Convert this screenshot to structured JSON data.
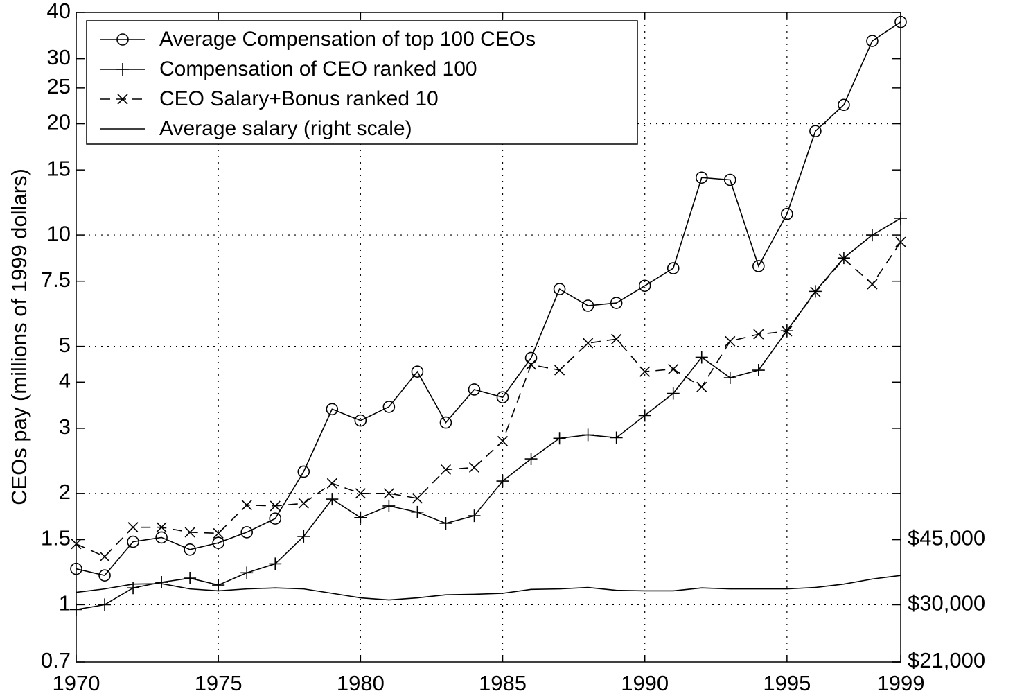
{
  "chart_data": {
    "type": "line",
    "y_label": "CEOs pay (millions of 1999 dollars)",
    "log_scale": true,
    "x": [
      1970,
      1971,
      1972,
      1973,
      1974,
      1975,
      1976,
      1977,
      1978,
      1979,
      1980,
      1981,
      1982,
      1983,
      1984,
      1985,
      1986,
      1987,
      1988,
      1989,
      1990,
      1991,
      1992,
      1993,
      1994,
      1995,
      1996,
      1997,
      1998,
      1999
    ],
    "xlim": [
      1970,
      1999
    ],
    "xticks": [
      1970,
      1975,
      1980,
      1985,
      1990,
      1995,
      1999
    ],
    "ylim": [
      0.7,
      40
    ],
    "yticks": [
      0.7,
      1,
      1.5,
      2,
      3,
      4,
      5,
      7.5,
      10,
      15,
      20,
      25,
      30,
      40
    ],
    "y2lim": [
      21000,
      1200000
    ],
    "y2ticks": [
      {
        "value": 21000,
        "label": "$21,000"
      },
      {
        "value": 30000,
        "label": "$30,000"
      },
      {
        "value": 45000,
        "label": "$45,000"
      }
    ],
    "grid": true,
    "ygrid": [
      1,
      2,
      5,
      10,
      20
    ],
    "legend": "upper left",
    "series": [
      {
        "name": "Average Compensation of top 100 CEOs",
        "color": "#000000",
        "marker": "circle",
        "linestyle": "solid",
        "values": [
          1.25,
          1.2,
          1.48,
          1.52,
          1.41,
          1.47,
          1.57,
          1.71,
          2.29,
          3.38,
          3.15,
          3.43,
          4.27,
          3.11,
          3.82,
          3.64,
          4.65,
          7.14,
          6.44,
          6.55,
          7.29,
          8.13,
          14.3,
          14.1,
          8.24,
          11.4,
          19.1,
          22.5,
          33.5,
          37.7
        ]
      },
      {
        "name": "Compensation of CEO ranked 100",
        "color": "#000000",
        "marker": "plus",
        "linestyle": "solid",
        "values": [
          0.97,
          1.0,
          1.11,
          1.15,
          1.18,
          1.13,
          1.22,
          1.29,
          1.53,
          1.93,
          1.72,
          1.85,
          1.78,
          1.66,
          1.74,
          2.16,
          2.48,
          2.82,
          2.88,
          2.83,
          3.25,
          3.73,
          4.67,
          4.11,
          4.31,
          5.51,
          7.04,
          8.67,
          10.0,
          11.1
        ]
      },
      {
        "name": "CEO Salary+Bonus ranked 10",
        "color": "#000000",
        "marker": "cross",
        "linestyle": "dashed",
        "values": [
          1.46,
          1.35,
          1.62,
          1.62,
          1.57,
          1.56,
          1.86,
          1.85,
          1.88,
          2.13,
          2.0,
          2.0,
          1.94,
          2.32,
          2.35,
          2.77,
          4.46,
          4.31,
          5.1,
          5.23,
          4.27,
          4.34,
          3.88,
          5.16,
          5.39,
          5.49,
          7.02,
          8.63,
          7.36,
          9.58
        ]
      },
      {
        "name": "Average salary (right scale)",
        "color": "#000000",
        "marker": "none",
        "linestyle": "solid",
        "axis": "y2",
        "values": [
          32400,
          33100,
          34100,
          34200,
          33100,
          32700,
          33100,
          33300,
          33100,
          32200,
          31300,
          30900,
          31300,
          31900,
          32000,
          32200,
          33000,
          33100,
          33400,
          32800,
          32700,
          32700,
          33300,
          33100,
          33100,
          33100,
          33400,
          34100,
          35200,
          36000
        ]
      }
    ]
  }
}
